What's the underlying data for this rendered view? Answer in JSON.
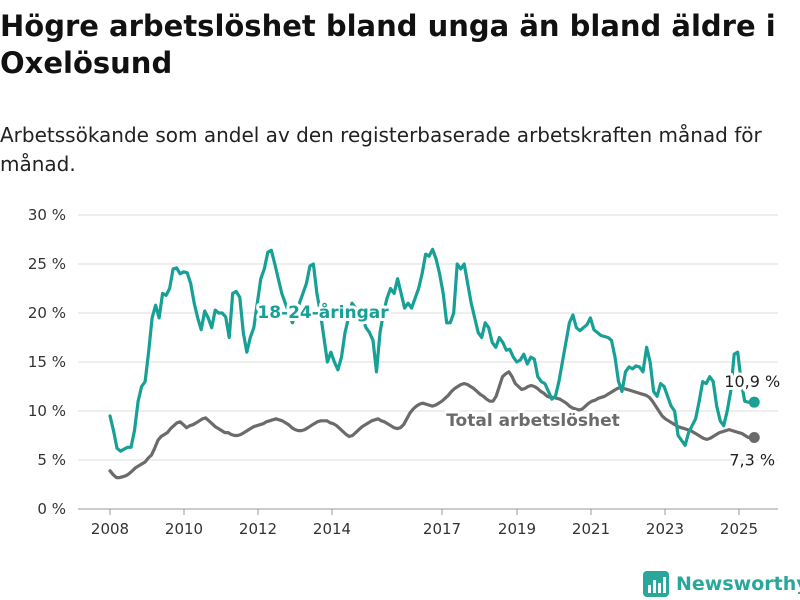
{
  "title": "Högre arbetslöshet bland unga än bland äldre i Oxelösund",
  "subtitle": "Arbetssökande som andel av den registerbaserade arbetskraften månad för månad.",
  "brand": "Newsworthy",
  "colors": {
    "youth": "#17a096",
    "total": "#6b6b6b",
    "grid": "#dddddd",
    "brand": "#2aa79b"
  },
  "chart_data": {
    "type": "line",
    "title": "Högre arbetslöshet bland unga än bland äldre i Oxelösund",
    "subtitle": "Arbetssökande som andel av den registerbaserade arbetskraften månad för månad.",
    "xlabel": "",
    "ylabel": "",
    "x_ticks": [
      "2008",
      "2010",
      "2012",
      "2014",
      "2017",
      "2019",
      "2021",
      "2023",
      "2025"
    ],
    "y_ticks": [
      "0 %",
      "5 %",
      "10 %",
      "15 %",
      "20 %",
      "25 %",
      "30 %"
    ],
    "ylim": [
      0,
      30
    ],
    "xlim": [
      "2007-09",
      "2025-12"
    ],
    "grid": true,
    "legend": "none",
    "series": [
      {
        "name": "18-24-åringar",
        "label_position": "inline",
        "end_label": "10,9 %",
        "x_start": "2008-01",
        "x_end": "2025-04",
        "values": [
          9.5,
          8.0,
          6.2,
          5.9,
          6.1,
          6.3,
          6.3,
          8.0,
          11.0,
          12.5,
          13.0,
          16.0,
          19.5,
          20.8,
          19.5,
          22.0,
          21.8,
          22.5,
          24.5,
          24.6,
          24.0,
          24.2,
          24.1,
          23.0,
          21.0,
          19.5,
          18.3,
          20.2,
          19.5,
          18.5,
          20.3,
          20.0,
          20.0,
          19.6,
          17.5,
          22.0,
          22.2,
          21.6,
          18.0,
          16.0,
          17.5,
          18.5,
          21.0,
          23.5,
          24.5,
          26.2,
          26.4,
          25.0,
          23.5,
          22.0,
          21.0,
          20.0,
          19.0,
          20.0,
          21.0,
          22.0,
          23.0,
          24.8,
          25.0,
          22.0,
          20.0,
          17.5,
          15.0,
          16.0,
          15.0,
          14.2,
          15.5,
          18.0,
          19.5,
          21.0,
          20.5,
          19.5,
          19.5,
          18.5,
          18.0,
          17.2,
          14.0,
          18.0,
          20.0,
          21.5,
          22.5,
          22.0,
          23.5,
          22.0,
          20.5,
          21.0,
          20.5,
          21.5,
          22.5,
          24.0,
          26.0,
          25.8,
          26.5,
          25.5,
          24.0,
          22.0,
          19.0,
          19.0,
          20.0,
          25.0,
          24.5,
          25.0,
          23.0,
          21.0,
          19.5,
          18.0,
          17.5,
          19.0,
          18.5,
          17.0,
          16.5,
          17.5,
          17.0,
          16.2,
          16.3,
          15.5,
          15.0,
          15.2,
          15.8,
          14.8,
          15.5,
          15.3,
          13.5,
          13.0,
          12.8,
          12.0,
          11.2,
          11.5,
          13.0,
          15.0,
          17.0,
          19.0,
          19.8,
          18.5,
          18.2,
          18.5,
          18.8,
          19.5,
          18.3,
          18.0,
          17.7,
          17.6,
          17.5,
          17.2,
          15.5,
          13.0,
          12.0,
          14.0,
          14.5,
          14.3,
          14.6,
          14.5,
          14.0,
          16.5,
          15.0,
          12.0,
          11.5,
          12.8,
          12.5,
          11.5,
          10.5,
          10.0,
          7.5,
          7.0,
          6.5,
          7.8,
          8.5,
          9.2,
          11.0,
          13.0,
          12.8,
          13.5,
          13.0,
          10.5,
          9.0,
          8.5,
          10.0,
          12.0,
          15.8,
          16.0,
          13.0,
          11.0,
          10.9
        ]
      },
      {
        "name": "Total arbetslöshet",
        "label_position": "inline",
        "end_label": "7,3 %",
        "x_start": "2008-01",
        "x_end": "2025-04",
        "values": [
          3.9,
          3.5,
          3.2,
          3.2,
          3.3,
          3.4,
          3.6,
          3.9,
          4.2,
          4.4,
          4.6,
          4.8,
          5.2,
          5.5,
          6.2,
          7.0,
          7.4,
          7.6,
          7.8,
          8.2,
          8.5,
          8.8,
          8.9,
          8.6,
          8.3,
          8.5,
          8.6,
          8.8,
          9.0,
          9.2,
          9.3,
          9.0,
          8.7,
          8.4,
          8.2,
          8.0,
          7.8,
          7.8,
          7.6,
          7.5,
          7.5,
          7.6,
          7.8,
          8.0,
          8.2,
          8.4,
          8.5,
          8.6,
          8.7,
          8.9,
          9.0,
          9.1,
          9.2,
          9.1,
          9.0,
          8.8,
          8.6,
          8.3,
          8.1,
          8.0,
          8.0,
          8.1,
          8.3,
          8.5,
          8.7,
          8.9,
          9.0,
          9.0,
          9.0,
          8.8,
          8.7,
          8.5,
          8.2,
          7.9,
          7.6,
          7.4,
          7.5,
          7.8,
          8.1,
          8.4,
          8.6,
          8.8,
          9.0,
          9.1,
          9.2,
          9.0,
          8.9,
          8.7,
          8.5,
          8.3,
          8.2,
          8.3,
          8.6,
          9.2,
          9.8,
          10.2,
          10.5,
          10.7,
          10.8,
          10.7,
          10.6,
          10.5,
          10.6,
          10.8,
          11.0,
          11.3,
          11.6,
          12.0,
          12.3,
          12.5,
          12.7,
          12.8,
          12.7,
          12.5,
          12.3,
          12.0,
          11.7,
          11.5,
          11.2,
          11.0,
          11.0,
          11.5,
          12.5,
          13.5,
          13.8,
          14.0,
          13.5,
          12.8,
          12.5,
          12.2,
          12.3,
          12.5,
          12.6,
          12.5,
          12.3,
          12.0,
          11.8,
          11.5,
          11.4,
          11.4,
          11.3,
          11.2,
          11.0,
          10.8,
          10.5,
          10.3,
          10.2,
          10.1,
          10.2,
          10.5,
          10.8,
          11.0,
          11.1,
          11.3,
          11.4,
          11.5,
          11.7,
          11.9,
          12.1,
          12.3,
          12.4,
          12.3,
          12.2,
          12.1,
          12.0,
          11.9,
          11.8,
          11.7,
          11.6,
          11.4,
          11.0,
          10.5,
          10.0,
          9.5,
          9.2,
          9.0,
          8.8,
          8.6,
          8.4,
          8.3,
          8.2,
          8.1,
          8.0,
          7.8,
          7.6,
          7.4,
          7.2,
          7.1,
          7.2,
          7.4,
          7.6,
          7.8,
          7.9,
          8.0,
          8.1,
          8.0,
          7.9,
          7.8,
          7.7,
          7.5,
          7.3
        ]
      }
    ]
  }
}
